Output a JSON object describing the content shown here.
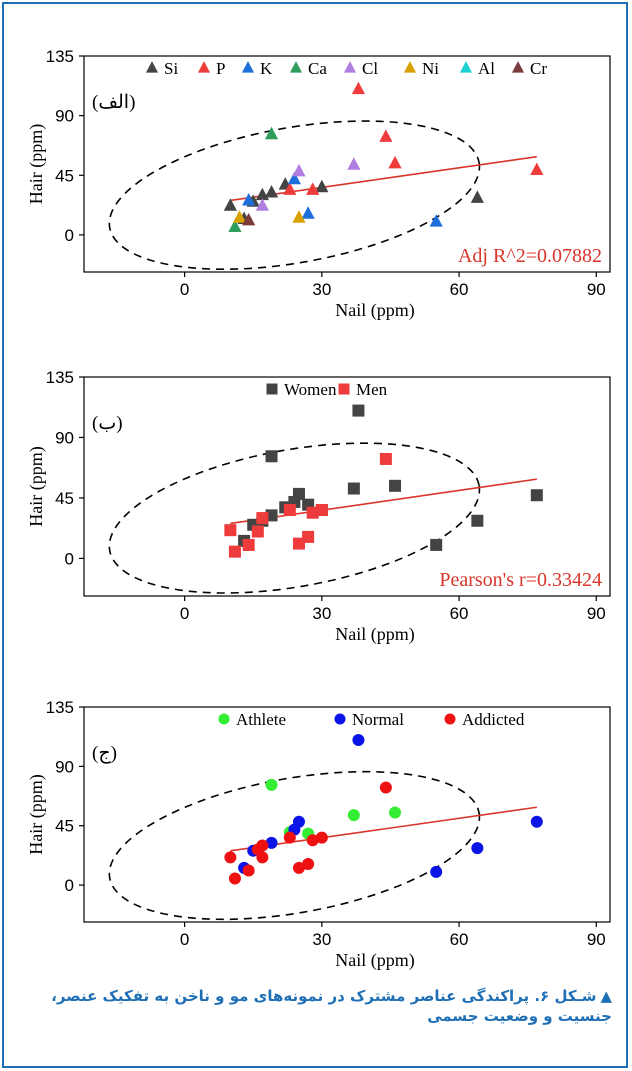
{
  "colors": {
    "frame": "#1f6fb6",
    "fit_line": "#d9352b",
    "annotation": "#d9352b",
    "caption": "#1f6fb6"
  },
  "caption": {
    "marker": "▲",
    "text": "شـکل ۶. پراکندگی عناصر مشترک در نمونه‌های مو و ناخن به تفکیک عنصر، جنسیت و وضعیت جسمی"
  },
  "chart_data": [
    {
      "type": "scatter",
      "panel_label": "(الف)",
      "xlabel": "Nail (ppm)",
      "ylabel": "Hair (ppm)",
      "xlim": [
        -22,
        93
      ],
      "ylim": [
        -28,
        135
      ],
      "xticks": [
        "0",
        "30",
        "60",
        "90"
      ],
      "yticks": [
        "0",
        "45",
        "90",
        "135"
      ],
      "marker": "triangle",
      "legend_position": "top",
      "annotation": "Adj R^2=0.07882",
      "fit_line": [
        [
          10,
          26
        ],
        [
          77,
          59
        ]
      ],
      "ellipse": {
        "cx": 24,
        "cy": 30,
        "rx": 41,
        "ry": 51,
        "angle_deg": 10
      },
      "series": [
        {
          "name": "Si",
          "color": "#444444",
          "points": [
            [
              10,
              22
            ],
            [
              13,
              12
            ],
            [
              15,
              25
            ],
            [
              17,
              30
            ],
            [
              19,
              32
            ],
            [
              22,
              38
            ],
            [
              30,
              36
            ],
            [
              64,
              28
            ]
          ]
        },
        {
          "name": "P",
          "color": "#ee3b3b",
          "points": [
            [
              23,
              34
            ],
            [
              28,
              34
            ],
            [
              38,
              110
            ],
            [
              44,
              74
            ],
            [
              46,
              54
            ],
            [
              77,
              49
            ]
          ]
        },
        {
          "name": "K",
          "color": "#1f6fdb",
          "points": [
            [
              14,
              26
            ],
            [
              24,
              42
            ],
            [
              27,
              16
            ],
            [
              55,
              10
            ]
          ]
        },
        {
          "name": "Ca",
          "color": "#2e9e5e",
          "points": [
            [
              11,
              6
            ],
            [
              19,
              76
            ]
          ]
        },
        {
          "name": "Cl",
          "color": "#b07ee0",
          "points": [
            [
              17,
              22
            ],
            [
              25,
              48
            ],
            [
              37,
              53
            ]
          ]
        },
        {
          "name": "Ni",
          "color": "#d8a000",
          "points": [
            [
              12,
              13
            ],
            [
              25,
              13
            ]
          ]
        },
        {
          "name": "Al",
          "color": "#1bd0d0",
          "points": []
        },
        {
          "name": "Cr",
          "color": "#7a3b3b",
          "points": [
            [
              14,
              11
            ]
          ]
        }
      ]
    },
    {
      "type": "scatter",
      "panel_label": "(ب)",
      "xlabel": "Nail (ppm)",
      "ylabel": "Hair (ppm)",
      "xlim": [
        -22,
        93
      ],
      "ylim": [
        -28,
        135
      ],
      "xticks": [
        "0",
        "30",
        "60",
        "90"
      ],
      "yticks": [
        "0",
        "45",
        "90",
        "135"
      ],
      "marker": "square",
      "legend_position": "top",
      "annotation": "Pearson's r=0.33424",
      "fit_line": [
        [
          10,
          26
        ],
        [
          77,
          59
        ]
      ],
      "ellipse": {
        "cx": 24,
        "cy": 30,
        "rx": 41,
        "ry": 51,
        "angle_deg": 10
      },
      "series": [
        {
          "name": "Women",
          "color": "#444444",
          "points": [
            [
              13,
              13
            ],
            [
              15,
              25
            ],
            [
              17,
              28
            ],
            [
              19,
              32
            ],
            [
              22,
              38
            ],
            [
              24,
              42
            ],
            [
              25,
              48
            ],
            [
              27,
              40
            ],
            [
              30,
              36
            ],
            [
              37,
              52
            ],
            [
              38,
              110
            ],
            [
              46,
              54
            ],
            [
              55,
              10
            ],
            [
              64,
              28
            ],
            [
              77,
              47
            ],
            [
              19,
              76
            ]
          ]
        },
        {
          "name": "Men",
          "color": "#ee3b3b",
          "points": [
            [
              10,
              21
            ],
            [
              11,
              5
            ],
            [
              14,
              10
            ],
            [
              16,
              20
            ],
            [
              17,
              30
            ],
            [
              23,
              36
            ],
            [
              25,
              11
            ],
            [
              27,
              16
            ],
            [
              28,
              34
            ],
            [
              30,
              36
            ],
            [
              44,
              74
            ]
          ]
        }
      ]
    },
    {
      "type": "scatter",
      "panel_label": "(ج)",
      "xlabel": "Nail (ppm)",
      "ylabel": "Hair (ppm)",
      "xlim": [
        -22,
        93
      ],
      "ylim": [
        -28,
        135
      ],
      "xticks": [
        "0",
        "30",
        "60",
        "90"
      ],
      "yticks": [
        "0",
        "45",
        "90",
        "135"
      ],
      "marker": "circle",
      "legend_position": "top",
      "annotation": "",
      "fit_line": [
        [
          10,
          26
        ],
        [
          77,
          59
        ]
      ],
      "ellipse": {
        "cx": 24,
        "cy": 30,
        "rx": 41,
        "ry": 51,
        "angle_deg": 10
      },
      "series": [
        {
          "name": "Athlete",
          "color": "#33ee33",
          "points": [
            [
              19,
              76
            ],
            [
              23,
              40
            ],
            [
              27,
              39
            ],
            [
              37,
              53
            ],
            [
              46,
              55
            ]
          ]
        },
        {
          "name": "Normal",
          "color": "#0a14e6",
          "points": [
            [
              13,
              13
            ],
            [
              15,
              26
            ],
            [
              19,
              32
            ],
            [
              24,
              42
            ],
            [
              25,
              48
            ],
            [
              38,
              110
            ],
            [
              55,
              10
            ],
            [
              64,
              28
            ],
            [
              77,
              48
            ]
          ]
        },
        {
          "name": "Addicted",
          "color": "#ee1111",
          "points": [
            [
              10,
              21
            ],
            [
              11,
              5
            ],
            [
              14,
              11
            ],
            [
              16,
              27
            ],
            [
              17,
              30
            ],
            [
              17,
              21
            ],
            [
              23,
              36
            ],
            [
              25,
              13
            ],
            [
              27,
              16
            ],
            [
              28,
              34
            ],
            [
              30,
              36
            ],
            [
              44,
              74
            ]
          ]
        }
      ]
    }
  ]
}
